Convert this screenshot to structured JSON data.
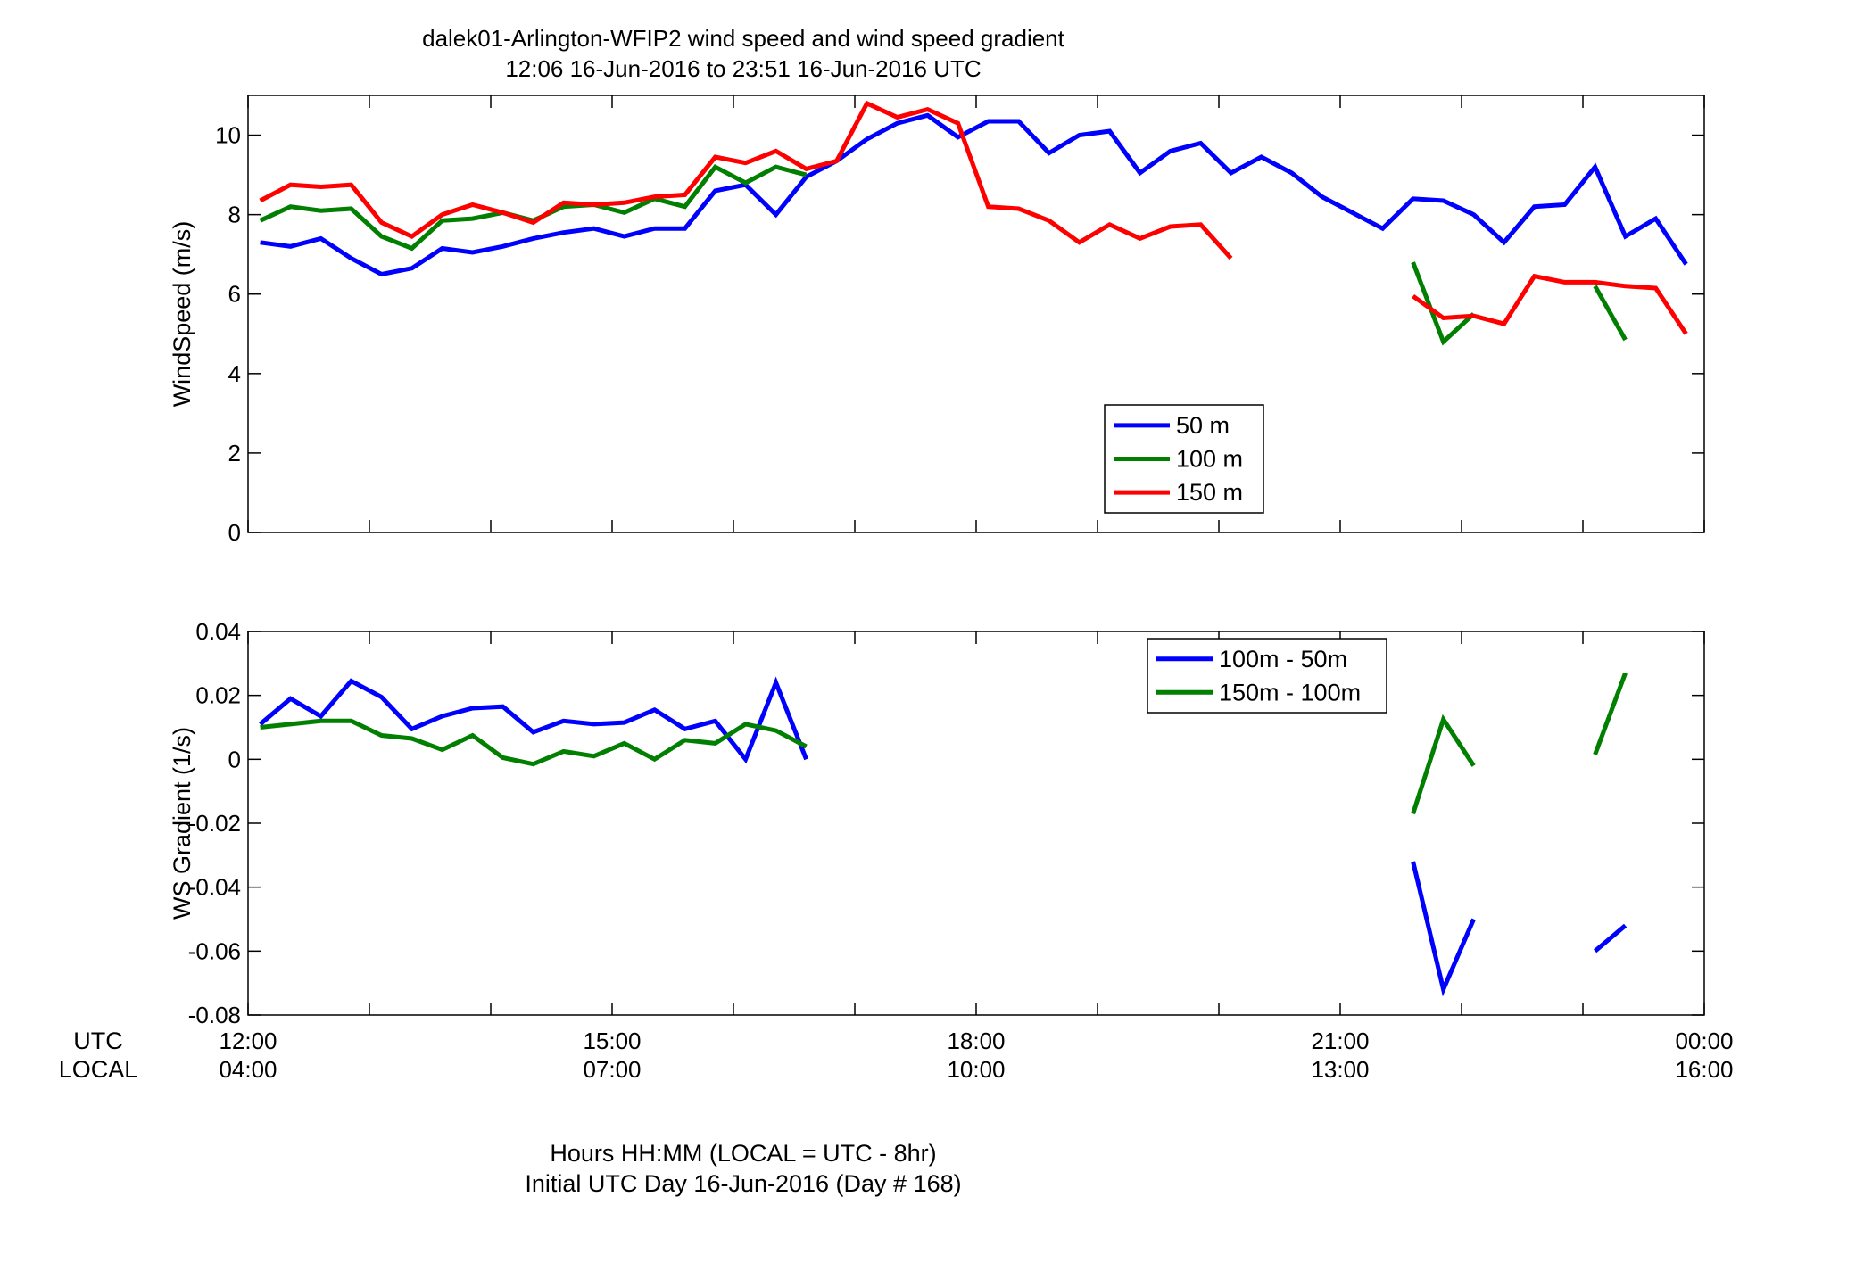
{
  "title_line1": "dalek01-Arlington-WFIP2  wind speed and wind speed gradient",
  "title_line2": "12:06 16-Jun-2016 to 23:51 16-Jun-2016  UTC",
  "row_labels": {
    "utc": "UTC",
    "local": "LOCAL"
  },
  "time_ticks": [
    {
      "hour": 12,
      "utc": "12:00",
      "local": "04:00"
    },
    {
      "hour": 15,
      "utc": "15:00",
      "local": "07:00"
    },
    {
      "hour": 18,
      "utc": "18:00",
      "local": "10:00"
    },
    {
      "hour": 21,
      "utc": "21:00",
      "local": "13:00"
    },
    {
      "hour": 24,
      "utc": "00:00",
      "local": "16:00"
    }
  ],
  "xnote_line1": "Hours HH:MM  (LOCAL = UTC - 8hr)",
  "xnote_line2": "Initial UTC Day 16-Jun-2016 (Day # 168)",
  "chart_data": [
    {
      "type": "line",
      "ylabel": "WindSpeed (m/s)",
      "x_unit": "UTC hour of 16-Jun-2016",
      "xlim": [
        12,
        24
      ],
      "ylim": [
        0,
        11
      ],
      "yticks": [
        0,
        2,
        4,
        6,
        8,
        10
      ],
      "ytick_labels": [
        "0",
        "2",
        "4",
        "6",
        "8",
        "10"
      ],
      "grid": false,
      "legend_position": "bottom-center",
      "series": [
        {
          "name": "50 m",
          "color": "#0000ff",
          "segments": [
            [
              [
                12.1,
                7.3
              ],
              [
                12.35,
                7.2
              ],
              [
                12.6,
                7.4
              ],
              [
                12.85,
                6.9
              ],
              [
                13.1,
                6.5
              ],
              [
                13.35,
                6.65
              ],
              [
                13.6,
                7.15
              ],
              [
                13.85,
                7.05
              ],
              [
                14.1,
                7.2
              ],
              [
                14.35,
                7.4
              ],
              [
                14.6,
                7.55
              ],
              [
                14.85,
                7.65
              ],
              [
                15.1,
                7.45
              ],
              [
                15.35,
                7.65
              ],
              [
                15.6,
                7.65
              ],
              [
                15.85,
                8.6
              ],
              [
                16.1,
                8.75
              ],
              [
                16.35,
                8.0
              ],
              [
                16.6,
                8.95
              ],
              [
                16.85,
                9.35
              ],
              [
                17.1,
                9.9
              ],
              [
                17.35,
                10.3
              ],
              [
                17.6,
                10.5
              ],
              [
                17.85,
                9.95
              ],
              [
                18.1,
                10.35
              ],
              [
                18.35,
                10.35
              ],
              [
                18.6,
                9.55
              ],
              [
                18.85,
                10.0
              ],
              [
                19.1,
                10.1
              ],
              [
                19.35,
                9.05
              ],
              [
                19.6,
                9.6
              ],
              [
                19.85,
                9.8
              ],
              [
                20.1,
                9.05
              ],
              [
                20.35,
                9.45
              ],
              [
                20.6,
                9.05
              ],
              [
                20.85,
                8.45
              ],
              [
                21.1,
                8.05
              ],
              [
                21.35,
                7.65
              ],
              [
                21.6,
                8.4
              ],
              [
                21.85,
                8.35
              ],
              [
                22.1,
                8.0
              ],
              [
                22.35,
                7.3
              ],
              [
                22.6,
                8.2
              ],
              [
                22.85,
                8.25
              ],
              [
                23.1,
                9.2
              ],
              [
                23.35,
                7.45
              ],
              [
                23.6,
                7.9
              ],
              [
                23.85,
                6.75
              ]
            ]
          ]
        },
        {
          "name": "100 m",
          "color": "#007f00",
          "segments": [
            [
              [
                12.1,
                7.85
              ],
              [
                12.35,
                8.2
              ],
              [
                12.6,
                8.1
              ],
              [
                12.85,
                8.15
              ],
              [
                13.1,
                7.45
              ],
              [
                13.35,
                7.15
              ],
              [
                13.6,
                7.85
              ],
              [
                13.85,
                7.9
              ],
              [
                14.1,
                8.05
              ],
              [
                14.35,
                7.85
              ],
              [
                14.6,
                8.2
              ],
              [
                14.85,
                8.25
              ],
              [
                15.1,
                8.05
              ],
              [
                15.35,
                8.4
              ],
              [
                15.6,
                8.2
              ],
              [
                15.85,
                9.2
              ],
              [
                16.1,
                8.8
              ],
              [
                16.35,
                9.2
              ],
              [
                16.6,
                9.0
              ]
            ],
            [
              [
                21.6,
                6.8
              ],
              [
                21.85,
                4.8
              ],
              [
                22.1,
                5.5
              ]
            ],
            [
              [
                23.1,
                6.2
              ],
              [
                23.35,
                4.85
              ]
            ]
          ]
        },
        {
          "name": "150 m",
          "color": "#ff0000",
          "segments": [
            [
              [
                12.1,
                8.35
              ],
              [
                12.35,
                8.75
              ],
              [
                12.6,
                8.7
              ],
              [
                12.85,
                8.75
              ],
              [
                13.1,
                7.8
              ],
              [
                13.35,
                7.45
              ],
              [
                13.6,
                8.0
              ],
              [
                13.85,
                8.25
              ],
              [
                14.1,
                8.05
              ],
              [
                14.35,
                7.8
              ],
              [
                14.6,
                8.3
              ],
              [
                14.85,
                8.25
              ],
              [
                15.1,
                8.3
              ],
              [
                15.35,
                8.45
              ],
              [
                15.6,
                8.5
              ],
              [
                15.85,
                9.45
              ],
              [
                16.1,
                9.3
              ],
              [
                16.35,
                9.6
              ],
              [
                16.6,
                9.15
              ],
              [
                16.85,
                9.35
              ],
              [
                17.1,
                10.8
              ],
              [
                17.35,
                10.45
              ],
              [
                17.6,
                10.65
              ],
              [
                17.85,
                10.3
              ],
              [
                18.1,
                8.2
              ],
              [
                18.35,
                8.15
              ],
              [
                18.6,
                7.85
              ],
              [
                18.85,
                7.3
              ],
              [
                19.1,
                7.75
              ],
              [
                19.35,
                7.4
              ],
              [
                19.6,
                7.7
              ],
              [
                19.85,
                7.75
              ],
              [
                20.1,
                6.9
              ]
            ],
            [
              [
                21.6,
                5.95
              ],
              [
                21.85,
                5.4
              ],
              [
                22.1,
                5.45
              ],
              [
                22.35,
                5.25
              ],
              [
                22.6,
                6.45
              ],
              [
                22.85,
                6.3
              ],
              [
                23.1,
                6.3
              ],
              [
                23.35,
                6.2
              ],
              [
                23.6,
                6.15
              ],
              [
                23.85,
                5.0
              ]
            ]
          ]
        }
      ]
    },
    {
      "type": "line",
      "ylabel": "WS Gradient (1/s)",
      "x_unit": "UTC hour of 16-Jun-2016",
      "xlim": [
        12,
        24
      ],
      "ylim": [
        -0.08,
        0.04
      ],
      "yticks": [
        -0.08,
        -0.06,
        -0.04,
        -0.02,
        0,
        0.02,
        0.04
      ],
      "ytick_labels": [
        "-0.08",
        "-0.06",
        "-0.04",
        "-0.02",
        "0",
        "0.02",
        "0.04"
      ],
      "grid": false,
      "legend_position": "top-right",
      "series": [
        {
          "name": "100m - 50m",
          "color": "#0000ff",
          "segments": [
            [
              [
                12.1,
                0.011
              ],
              [
                12.35,
                0.019
              ],
              [
                12.6,
                0.0135
              ],
              [
                12.85,
                0.0245
              ],
              [
                13.1,
                0.0195
              ],
              [
                13.35,
                0.0095
              ],
              [
                13.6,
                0.0135
              ],
              [
                13.85,
                0.016
              ],
              [
                14.1,
                0.0165
              ],
              [
                14.35,
                0.0085
              ],
              [
                14.6,
                0.012
              ],
              [
                14.85,
                0.011
              ],
              [
                15.1,
                0.0115
              ],
              [
                15.35,
                0.0155
              ],
              [
                15.6,
                0.0095
              ],
              [
                15.85,
                0.012
              ],
              [
                16.1,
                0.0
              ],
              [
                16.35,
                0.024
              ],
              [
                16.6,
                0.0
              ]
            ],
            [
              [
                21.6,
                -0.032
              ],
              [
                21.85,
                -0.072
              ],
              [
                22.1,
                -0.05
              ]
            ],
            [
              [
                23.1,
                -0.06
              ],
              [
                23.35,
                -0.052
              ]
            ]
          ]
        },
        {
          "name": "150m - 100m",
          "color": "#007f00",
          "segments": [
            [
              [
                12.1,
                0.01
              ],
              [
                12.35,
                0.011
              ],
              [
                12.6,
                0.012
              ],
              [
                12.85,
                0.012
              ],
              [
                13.1,
                0.0075
              ],
              [
                13.35,
                0.0065
              ],
              [
                13.6,
                0.003
              ],
              [
                13.85,
                0.0075
              ],
              [
                14.1,
                0.0005
              ],
              [
                14.35,
                -0.0015
              ],
              [
                14.6,
                0.0025
              ],
              [
                14.85,
                0.001
              ],
              [
                15.1,
                0.005
              ],
              [
                15.35,
                0.0
              ],
              [
                15.6,
                0.006
              ],
              [
                15.85,
                0.005
              ],
              [
                16.1,
                0.011
              ],
              [
                16.35,
                0.009
              ],
              [
                16.6,
                0.004
              ]
            ],
            [
              [
                21.6,
                -0.017
              ],
              [
                21.85,
                0.0125
              ],
              [
                22.1,
                -0.002
              ]
            ],
            [
              [
                23.1,
                0.0015
              ],
              [
                23.35,
                0.027
              ]
            ]
          ]
        }
      ]
    }
  ]
}
